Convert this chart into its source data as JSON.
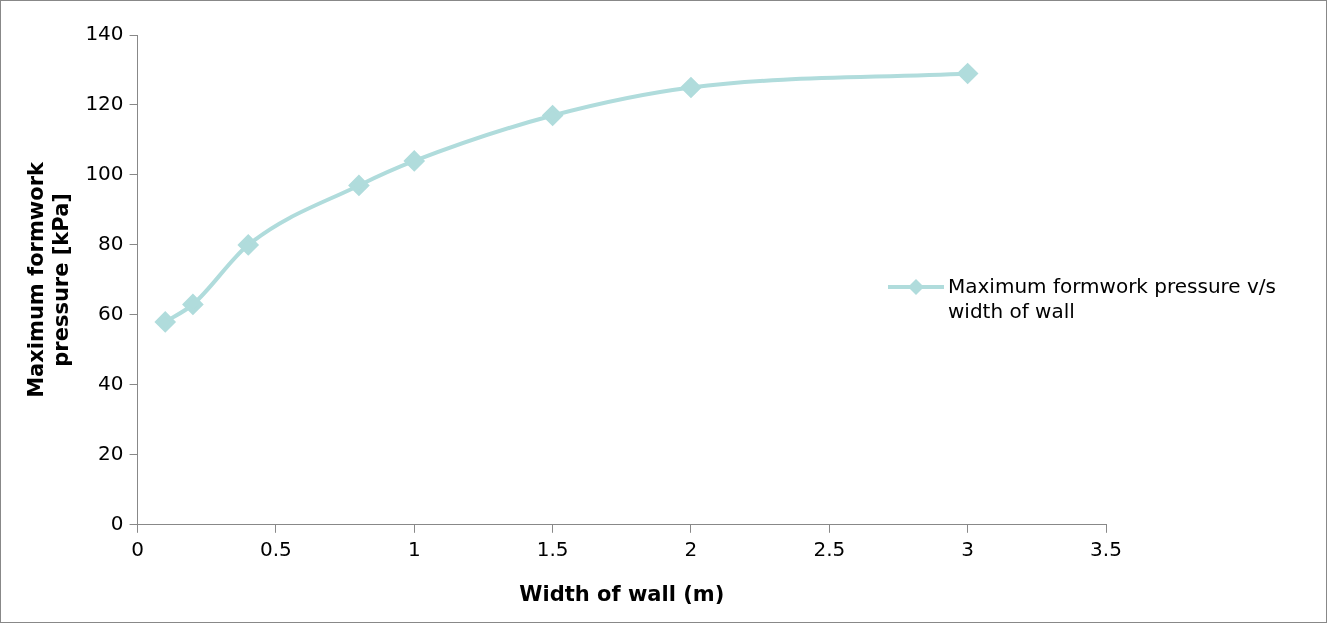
{
  "chart_data": {
    "type": "line",
    "xlabel": "Width of wall (m)",
    "ylabel": "Maximum formwork pressure [kPa]",
    "x": [
      0.1,
      0.2,
      0.4,
      0.8,
      1,
      1.5,
      2,
      3
    ],
    "series": [
      {
        "name": "Maximum formwork pressure v/s width of wall",
        "color": "#b0dcdc",
        "values": [
          58,
          63,
          80,
          97,
          104,
          117,
          125,
          129
        ]
      }
    ],
    "xlim": [
      0,
      3.5
    ],
    "xticks": [
      0,
      0.5,
      1,
      1.5,
      2,
      2.5,
      3,
      3.5
    ],
    "ylim": [
      0,
      140
    ],
    "yticks": [
      0,
      20,
      40,
      60,
      80,
      100,
      120,
      140
    ],
    "grid": false,
    "legend": "right",
    "marker": "diamond",
    "line_style": "solid"
  }
}
